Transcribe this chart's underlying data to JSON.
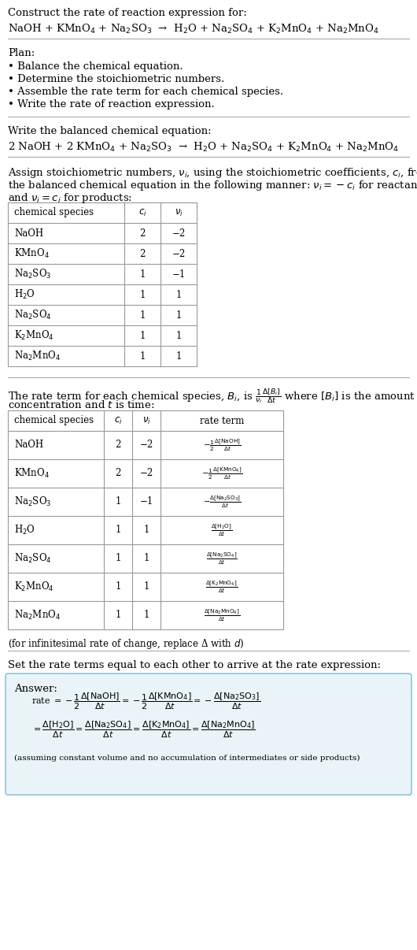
{
  "title_line1": "Construct the rate of reaction expression for:",
  "reaction_unbalanced": "NaOH + KMnO$_4$ + Na$_2$SO$_3$  →  H$_2$O + Na$_2$SO$_4$ + K$_2$MnO$_4$ + Na$_2$MnO$_4$",
  "plan_header": "Plan:",
  "plan_items": [
    "• Balance the chemical equation.",
    "• Determine the stoichiometric numbers.",
    "• Assemble the rate term for each chemical species.",
    "• Write the rate of reaction expression."
  ],
  "balanced_header": "Write the balanced chemical equation:",
  "reaction_balanced": "2 NaOH + 2 KMnO$_4$ + Na$_2$SO$_3$  →  H$_2$O + Na$_2$SO$_4$ + K$_2$MnO$_4$ + Na$_2$MnO$_4$",
  "assign_text1": "Assign stoichiometric numbers, $\\nu_i$, using the stoichiometric coefficients, $c_i$, from",
  "assign_text2": "the balanced chemical equation in the following manner: $\\nu_i = -c_i$ for reactants",
  "assign_text3": "and $\\nu_i = c_i$ for products:",
  "table1_headers": [
    "chemical species",
    "$c_i$",
    "$\\nu_i$"
  ],
  "table1_data": [
    [
      "NaOH",
      "2",
      "−2"
    ],
    [
      "KMnO$_4$",
      "2",
      "−2"
    ],
    [
      "Na$_2$SO$_3$",
      "1",
      "−1"
    ],
    [
      "H$_2$O",
      "1",
      "1"
    ],
    [
      "Na$_2$SO$_4$",
      "1",
      "1"
    ],
    [
      "K$_2$MnO$_4$",
      "1",
      "1"
    ],
    [
      "Na$_2$MnO$_4$",
      "1",
      "1"
    ]
  ],
  "rate_text1": "The rate term for each chemical species, $B_i$, is $\\frac{1}{\\nu_i}\\frac{\\Delta[B_i]}{\\Delta t}$ where $[B_i]$ is the amount",
  "rate_text2": "concentration and $t$ is time:",
  "table2_headers": [
    "chemical species",
    "$c_i$",
    "$\\nu_i$",
    "rate term"
  ],
  "table2_data": [
    [
      "NaOH",
      "2",
      "−2",
      "$-\\frac{1}{2}\\frac{\\Delta[\\mathrm{NaOH}]}{\\Delta t}$"
    ],
    [
      "KMnO$_4$",
      "2",
      "−2",
      "$-\\frac{1}{2}\\frac{\\Delta[\\mathrm{KMnO_4}]}{\\Delta t}$"
    ],
    [
      "Na$_2$SO$_3$",
      "1",
      "−1",
      "$-\\frac{\\Delta[\\mathrm{Na_2SO_3}]}{\\Delta t}$"
    ],
    [
      "H$_2$O",
      "1",
      "1",
      "$\\frac{\\Delta[\\mathrm{H_2O}]}{\\Delta t}$"
    ],
    [
      "Na$_2$SO$_4$",
      "1",
      "1",
      "$\\frac{\\Delta[\\mathrm{Na_2SO_4}]}{\\Delta t}$"
    ],
    [
      "K$_2$MnO$_4$",
      "1",
      "1",
      "$\\frac{\\Delta[\\mathrm{K_2MnO_4}]}{\\Delta t}$"
    ],
    [
      "Na$_2$MnO$_4$",
      "1",
      "1",
      "$\\frac{\\Delta[\\mathrm{Na_2MnO_4}]}{\\Delta t}$"
    ]
  ],
  "infinitesimal_note": "(for infinitesimal rate of change, replace Δ with $d$)",
  "set_rate_text": "Set the rate terms equal to each other to arrive at the rate expression:",
  "answer_box_color": "#e8f4f8",
  "answer_box_border": "#7bbccc",
  "answer_label": "Answer:",
  "answer_assuming": "(assuming constant volume and no accumulation of intermediates or side products)",
  "bg_color": "#ffffff",
  "text_color": "#000000",
  "table_border_color": "#999999",
  "font_size": 9.5,
  "fs_small": 8.5
}
